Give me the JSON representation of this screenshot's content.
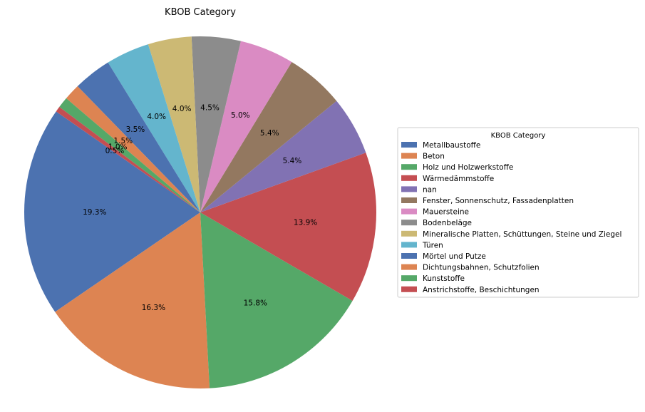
{
  "chart_data": {
    "type": "pie",
    "title": "KBOB Category",
    "legend_title": "KBOB Category",
    "legend_placement": "right",
    "categories": [
      "Metallbaustoffe",
      "Beton",
      "Holz und Holzwerkstoffe",
      "Wärmedämmstoffe",
      "nan",
      "Fenster, Sonnenschutz, Fassadenplatten",
      "Mauersteine",
      "Bodenbeläge",
      "Mineralische Platten, Schüttungen, Steine und Ziegel",
      "Türen",
      "Mörtel und Putze",
      "Dichtungsbahnen, Schutzfolien",
      "Kunststoffe",
      "Anstrichstoffe, Beschichtungen"
    ],
    "values": [
      19.3,
      16.3,
      15.8,
      13.9,
      5.4,
      5.4,
      5.0,
      4.5,
      4.0,
      4.0,
      3.5,
      1.5,
      1.0,
      0.5
    ],
    "labels": [
      "19.3%",
      "16.3%",
      "15.8%",
      "13.9%",
      "5.4%",
      "5.4%",
      "5.0%",
      "4.5%",
      "4.0%",
      "4.0%",
      "3.5%",
      "1.5%",
      "1.0%",
      "0.5%"
    ],
    "colors": [
      "#4c72b0",
      "#dd8452",
      "#55a868",
      "#c44e52",
      "#8172b3",
      "#937860",
      "#da8bc3",
      "#8c8c8c",
      "#ccb974",
      "#64b5cd",
      "#4c72b0",
      "#dd8452",
      "#55a868",
      "#c44e52"
    ],
    "start_angle_deg": 145,
    "direction": "counterclockwise"
  }
}
